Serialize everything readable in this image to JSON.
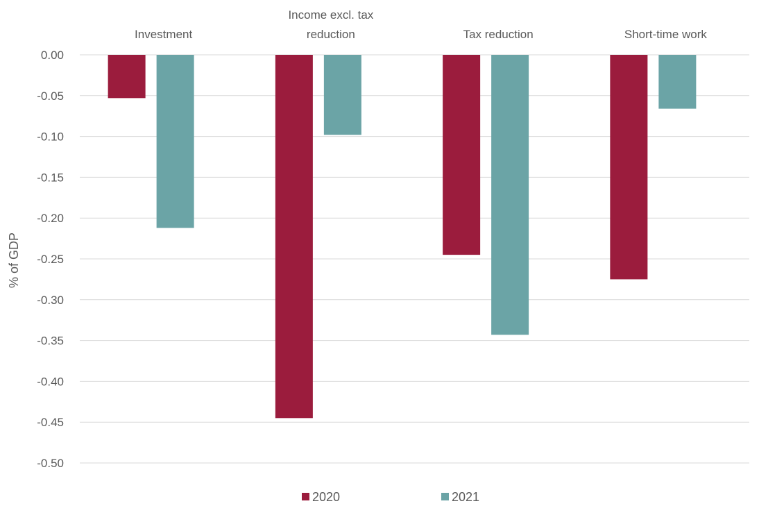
{
  "chart_data": {
    "type": "bar",
    "categories": [
      "Investment",
      "Income excl. tax reduction",
      "Tax reduction",
      "Short-time work"
    ],
    "series": [
      {
        "name": "2020",
        "color": "#9B1C3D",
        "values": [
          -0.053,
          -0.445,
          -0.245,
          -0.275
        ]
      },
      {
        "name": "2021",
        "color": "#6BA4A6",
        "values": [
          -0.212,
          -0.098,
          -0.343,
          -0.066
        ]
      }
    ],
    "ylabel": "% of GDP",
    "ylim": [
      -0.5,
      0.0
    ],
    "yticks": [
      "0.00",
      "-0.05",
      "-0.10",
      "-0.15",
      "-0.20",
      "-0.25",
      "-0.30",
      "-0.35",
      "-0.40",
      "-0.45",
      "-0.50"
    ],
    "category_label_position": "top",
    "legend_position": "bottom",
    "grid": true
  }
}
